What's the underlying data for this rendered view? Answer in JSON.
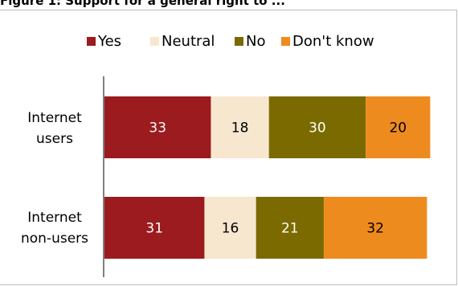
{
  "title": "Figure 1: Support for a general right to ...",
  "chart_data": {
    "type": "bar",
    "orientation": "horizontal",
    "stacked": true,
    "categories": [
      "Internet users",
      "Internet non-users"
    ],
    "category_lines": [
      [
        "Internet",
        "users"
      ],
      [
        "Internet",
        "non-users"
      ]
    ],
    "series": [
      {
        "name": "Yes",
        "color": "#9b1b1e",
        "values": [
          33,
          31
        ]
      },
      {
        "name": "Neutral",
        "color": "#f7e7cf",
        "values": [
          18,
          16
        ]
      },
      {
        "name": "No",
        "color": "#7a6a00",
        "values": [
          30,
          21
        ]
      },
      {
        "name": "Don't know",
        "color": "#ee8b1f",
        "values": [
          20,
          32
        ]
      }
    ],
    "legend_position": "top",
    "grid": false,
    "value_labels": true
  }
}
